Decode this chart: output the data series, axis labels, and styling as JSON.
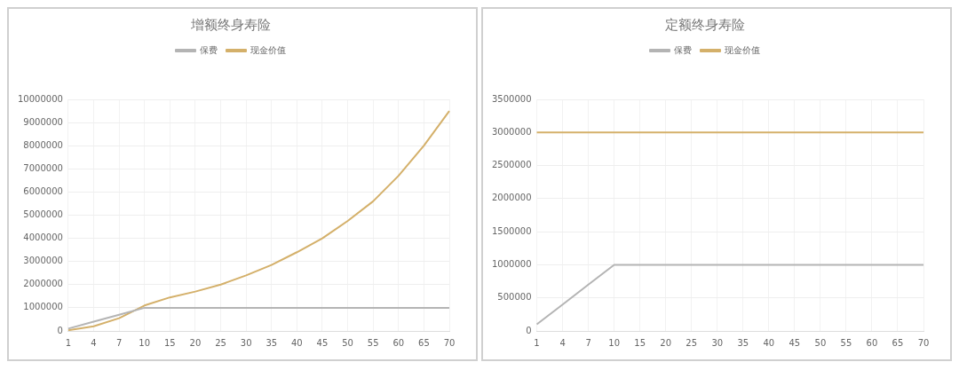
{
  "chart_data": [
    {
      "type": "line",
      "title": "增额终身寿险",
      "categories": [
        "1",
        "4",
        "7",
        "10",
        "15",
        "20",
        "25",
        "30",
        "35",
        "40",
        "45",
        "50",
        "55",
        "60",
        "65",
        "70"
      ],
      "series": [
        {
          "name": "保费",
          "color": "#b4b4b4",
          "values": [
            100000,
            400000,
            700000,
            1000000,
            1000000,
            1000000,
            1000000,
            1000000,
            1000000,
            1000000,
            1000000,
            1000000,
            1000000,
            1000000,
            1000000,
            1000000
          ]
        },
        {
          "name": "现金价值",
          "color": "#d4b06a",
          "values": [
            30000,
            200000,
            550000,
            1100000,
            1450000,
            1700000,
            2000000,
            2400000,
            2850000,
            3400000,
            4000000,
            4750000,
            5600000,
            6700000,
            8000000,
            9500000
          ]
        }
      ],
      "ylim": [
        0,
        10000000
      ],
      "yticks": [
        0,
        1000000,
        2000000,
        3000000,
        4000000,
        5000000,
        6000000,
        7000000,
        8000000,
        9000000,
        10000000
      ],
      "grid": true,
      "legend": "top",
      "marker": "none"
    },
    {
      "type": "line",
      "title": "定额终身寿险",
      "categories": [
        "1",
        "4",
        "7",
        "10",
        "15",
        "20",
        "25",
        "30",
        "35",
        "40",
        "45",
        "50",
        "55",
        "60",
        "65",
        "70"
      ],
      "series": [
        {
          "name": "保费",
          "color": "#b4b4b4",
          "values": [
            100000,
            400000,
            700000,
            1000000,
            1000000,
            1000000,
            1000000,
            1000000,
            1000000,
            1000000,
            1000000,
            1000000,
            1000000,
            1000000,
            1000000,
            1000000
          ]
        },
        {
          "name": "现金价值",
          "color": "#d4b06a",
          "values": [
            3000000,
            3000000,
            3000000,
            3000000,
            3000000,
            3000000,
            3000000,
            3000000,
            3000000,
            3000000,
            3000000,
            3000000,
            3000000,
            3000000,
            3000000,
            3000000
          ]
        }
      ],
      "ylim": [
        0,
        3500000
      ],
      "yticks": [
        0,
        500000,
        1000000,
        1500000,
        2000000,
        2500000,
        3000000,
        3500000
      ],
      "grid": true,
      "legend": "top",
      "marker": "none"
    }
  ]
}
